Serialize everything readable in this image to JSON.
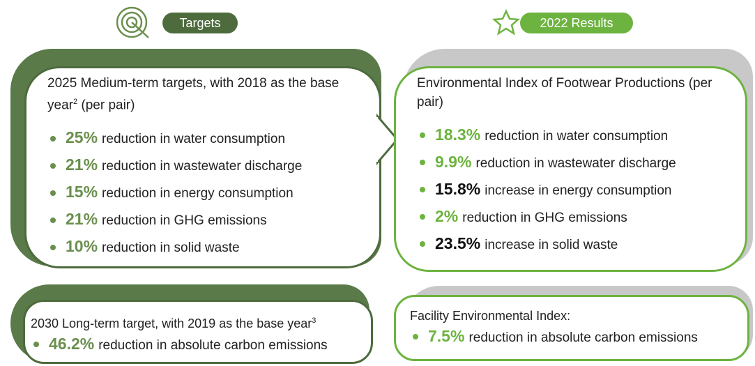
{
  "targets": {
    "label": "Targets",
    "medium": {
      "title": "2025 Medium-term targets, with 2018 as the base year",
      "sup": "2",
      "title_end": " (per pair)",
      "items": [
        {
          "value": "25%",
          "text": "reduction in water consumption"
        },
        {
          "value": "21%",
          "text": "reduction in wastewater discharge"
        },
        {
          "value": "15%",
          "text": "reduction in energy consumption"
        },
        {
          "value": "21%",
          "text": "reduction in GHG emissions"
        },
        {
          "value": "10%",
          "text": "reduction in solid waste"
        }
      ]
    },
    "long": {
      "title": "2030 Long-term target, with 2019 as the base year",
      "sup": "3",
      "items": [
        {
          "value": "46.2%",
          "text": "reduction in absolute carbon emissions"
        }
      ]
    }
  },
  "results": {
    "label": "2022 Results",
    "medium": {
      "title": "Environmental Index of Footwear Productions (per pair)",
      "items": [
        {
          "value": "18.3%",
          "text": "reduction in water consumption"
        },
        {
          "value": "9.9%",
          "text": "reduction in wastewater discharge"
        },
        {
          "value": "15.8%",
          "text": "increase in energy consumption"
        },
        {
          "value": "2%",
          "text": "reduction in GHG emissions"
        },
        {
          "value": "23.5%",
          "text": "increase in solid waste"
        }
      ]
    },
    "long": {
      "title": "Facility Environmental Index:",
      "items": [
        {
          "value": "7.5%",
          "text": "reduction in absolute carbon emissions"
        }
      ]
    }
  }
}
